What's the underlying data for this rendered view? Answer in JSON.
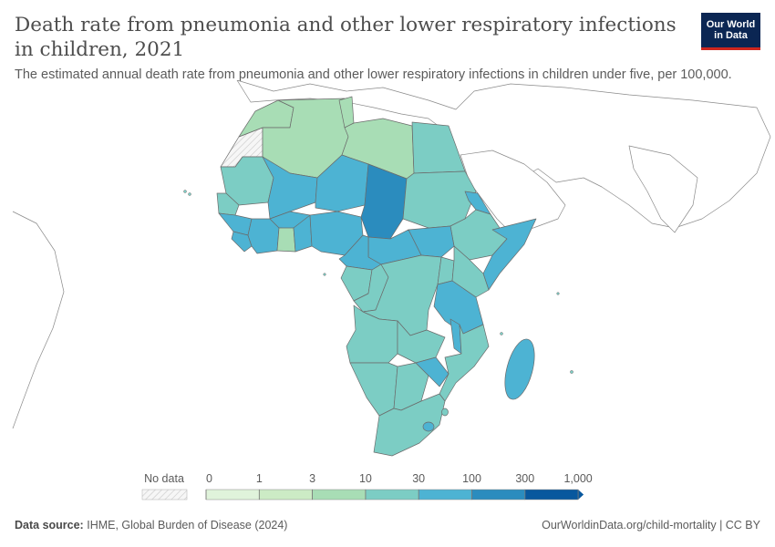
{
  "header": {
    "title": "Death rate from pneumonia and other lower respiratory infections in children, 2021",
    "subtitle": "The estimated annual death rate from pneumonia and other lower respiratory infections in children under five, per 100,000.",
    "logo_line1": "Our World",
    "logo_line2": "in Data"
  },
  "legend": {
    "no_data_label": "No data",
    "bins": [
      {
        "label": "0",
        "color": "#f7fcf0"
      },
      {
        "label": "1",
        "color": "#e0f3db"
      },
      {
        "label": "3",
        "color": "#ccebc5"
      },
      {
        "label": "10",
        "color": "#a8ddb5"
      },
      {
        "label": "30",
        "color": "#7ccdc4"
      },
      {
        "label": "100",
        "color": "#4db3d3"
      },
      {
        "label": "300",
        "color": "#2b8cbe"
      },
      {
        "label": "1,000",
        "color": "#08589e"
      }
    ]
  },
  "footer": {
    "source_label": "Data source:",
    "source_text": "IHME, Global Burden of Disease (2024)",
    "url_text": "OurWorldinData.org/child-mortality | CC BY"
  },
  "colors": {
    "bin_10_30": "#a8ddb5",
    "bin_30_100": "#7ccdc4",
    "bin_100_300": "#4db3d3",
    "bin_300_1000": "#2b8cbe",
    "no_data": "#f2f2f2",
    "border": "#6b6b6b",
    "outside": "#ffffff"
  }
}
